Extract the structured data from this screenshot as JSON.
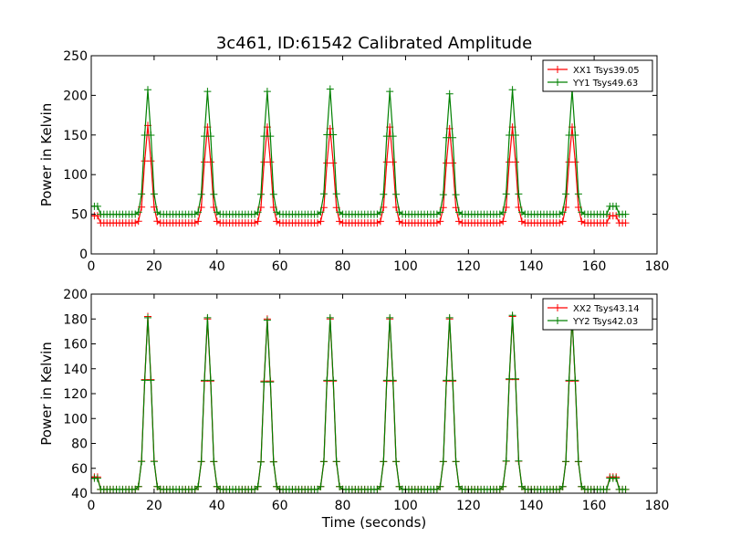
{
  "figure": {
    "title": "3c461, ID:61542 Calibrated Amplitude",
    "shared_xlabel": "Time (seconds)"
  },
  "colors": {
    "red": "#ff0000",
    "green": "#008000"
  },
  "chart_data": [
    {
      "type": "line",
      "panel": "top",
      "title": "3c461, ID:61542 Calibrated Amplitude",
      "xlabel": "",
      "ylabel": "Power in Kelvin",
      "xlim": [
        0,
        180
      ],
      "ylim": [
        0,
        250
      ],
      "xticks": [
        0,
        20,
        40,
        60,
        80,
        100,
        120,
        140,
        160,
        180
      ],
      "yticks": [
        0,
        50,
        100,
        150,
        200,
        250
      ],
      "grid": false,
      "legend_position": "top-right",
      "marker": "+",
      "x_sampling": {
        "start": 0,
        "end": 170,
        "step": 1
      },
      "peak_times": [
        18,
        37,
        56,
        76,
        95,
        114,
        134,
        153
      ],
      "segment_breaks": [
        3,
        165,
        168
      ],
      "series": [
        {
          "name": "XX1 Tsys39.05",
          "color": "#ff0000",
          "segment_base": [
            48,
            39,
            48,
            39
          ],
          "peak_values": [
            162,
            160,
            160,
            158,
            160,
            158,
            160,
            160
          ]
        },
        {
          "name": "YY1 Tsys49.63",
          "color": "#008000",
          "segment_base": [
            60,
            50,
            60,
            50
          ],
          "peak_values": [
            207,
            205,
            205,
            208,
            205,
            202,
            207,
            207
          ]
        }
      ]
    },
    {
      "type": "line",
      "panel": "bottom",
      "title": "",
      "xlabel": "Time (seconds)",
      "ylabel": "Power in Kelvin",
      "xlim": [
        0,
        180
      ],
      "ylim": [
        40,
        200
      ],
      "xticks": [
        0,
        20,
        40,
        60,
        80,
        100,
        120,
        140,
        160,
        180
      ],
      "yticks": [
        40,
        60,
        80,
        100,
        120,
        140,
        160,
        180,
        200
      ],
      "grid": false,
      "legend_position": "top-right",
      "marker": "+",
      "x_sampling": {
        "start": 0,
        "end": 170,
        "step": 1
      },
      "peak_times": [
        18,
        37,
        56,
        76,
        95,
        114,
        134,
        153
      ],
      "segment_breaks": [
        3,
        165,
        168
      ],
      "series": [
        {
          "name": "XX2 Tsys43.14",
          "color": "#ff0000",
          "segment_base": [
            53,
            43,
            53,
            43
          ],
          "peak_values": [
            182,
            180,
            180,
            180,
            180,
            180,
            182,
            180
          ]
        },
        {
          "name": "YY2 Tsys42.03",
          "color": "#008000",
          "segment_base": [
            52,
            43,
            52,
            43
          ],
          "peak_values": [
            181,
            181,
            179,
            181,
            181,
            181,
            183,
            181
          ]
        }
      ]
    }
  ]
}
